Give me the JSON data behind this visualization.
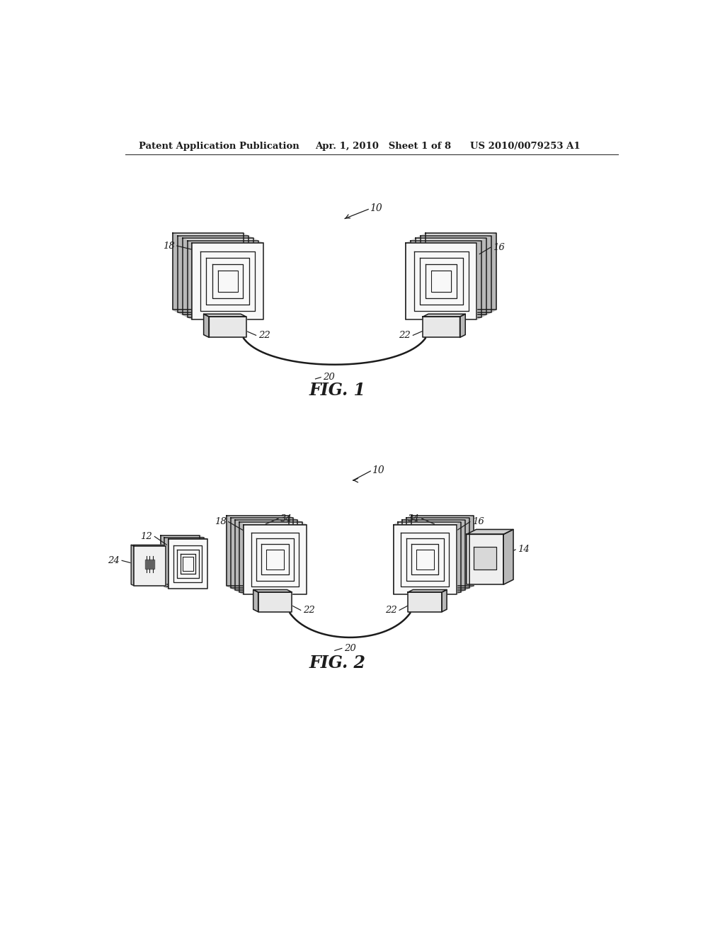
{
  "header_left": "Patent Application Publication",
  "header_center": "Apr. 1, 2010   Sheet 1 of 8",
  "header_right": "US 2010/0079253 A1",
  "fig1_label": "FIG. 1",
  "fig2_label": "FIG. 2",
  "bg": "#ffffff",
  "lc": "#1c1c1c",
  "shade_top": "#d8d8d8",
  "shade_side": "#b8b8b8",
  "shade_front": "#f5f5f5",
  "shade_box_front": "#e8e8e8",
  "shade_box_top": "#d0d0d0",
  "shade_box_side": "#b8b8b8"
}
